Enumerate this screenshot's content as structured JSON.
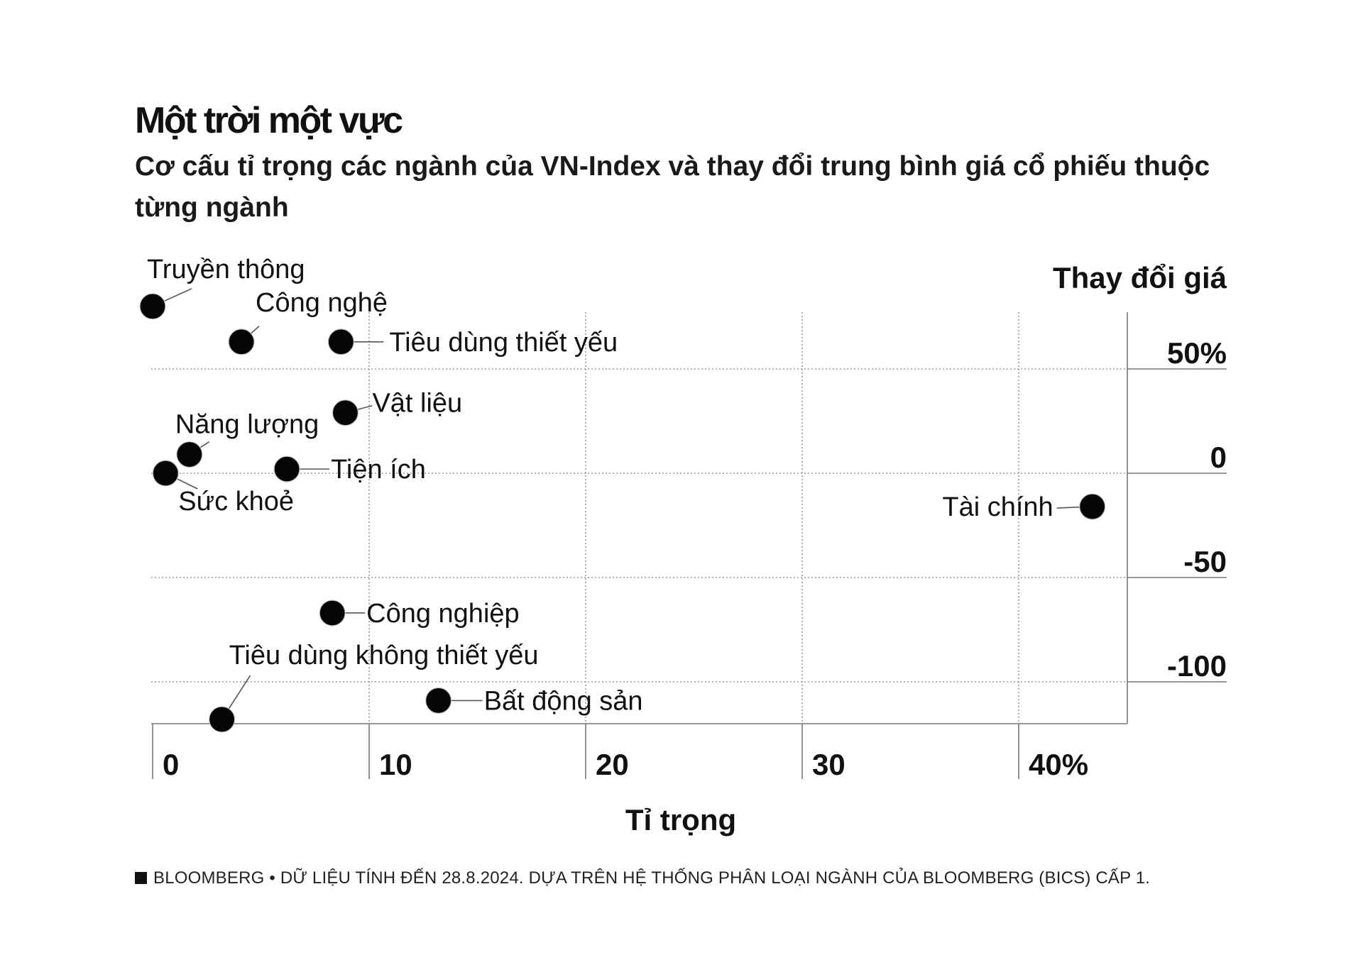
{
  "title": "Một trời một vực",
  "subtitle": "Cơ cấu tỉ trọng các ngành của VN-Index và thay đổi trung bình giá cổ phiếu thuộc từng ngành",
  "source": "BLOOMBERG • DỮ LIỆU TÍNH ĐẾN 28.8.2024. DỰA TRÊN HỆ THỐNG PHÂN LOẠI NGÀNH CỦA BLOOMBERG (BICS) CẤP 1.",
  "chart_data": {
    "type": "scatter",
    "title": "Một trời một vực",
    "subtitle": "Cơ cấu tỉ trọng các ngành của VN-Index và thay đổi trung bình giá cổ phiếu thuộc từng ngành",
    "xlabel": "Tỉ trọng",
    "ylabel": "Thay đổi giá",
    "xlim": [
      0,
      45
    ],
    "ylim": [
      -120,
      85
    ],
    "x_ticks": [
      0,
      10,
      20,
      30,
      40
    ],
    "x_tick_labels": [
      "0",
      "10",
      "20",
      "30",
      "40%"
    ],
    "y_ticks": [
      50,
      0,
      -50,
      -100
    ],
    "y_tick_labels": [
      "50%",
      "0",
      "-50",
      "-100"
    ],
    "grid": true,
    "points": [
      {
        "label": "Truyền thông",
        "x": 0.0,
        "y": 80
      },
      {
        "label": "Công nghệ",
        "x": 4.1,
        "y": 63
      },
      {
        "label": "Tiêu dùng thiết yếu",
        "x": 8.7,
        "y": 63
      },
      {
        "label": "Vật liệu",
        "x": 8.9,
        "y": 29
      },
      {
        "label": "Năng lượng",
        "x": 1.7,
        "y": 9
      },
      {
        "label": "Tiện ích",
        "x": 6.2,
        "y": 2
      },
      {
        "label": "Sức khoẻ",
        "x": 0.6,
        "y": 0
      },
      {
        "label": "Tài chính",
        "x": 43.4,
        "y": -16
      },
      {
        "label": "Công nghiệp",
        "x": 8.3,
        "y": -67
      },
      {
        "label": "Bất động sản",
        "x": 13.2,
        "y": -109
      },
      {
        "label": "Tiêu dùng không thiết yếu",
        "x": 3.2,
        "y": -118
      }
    ]
  }
}
